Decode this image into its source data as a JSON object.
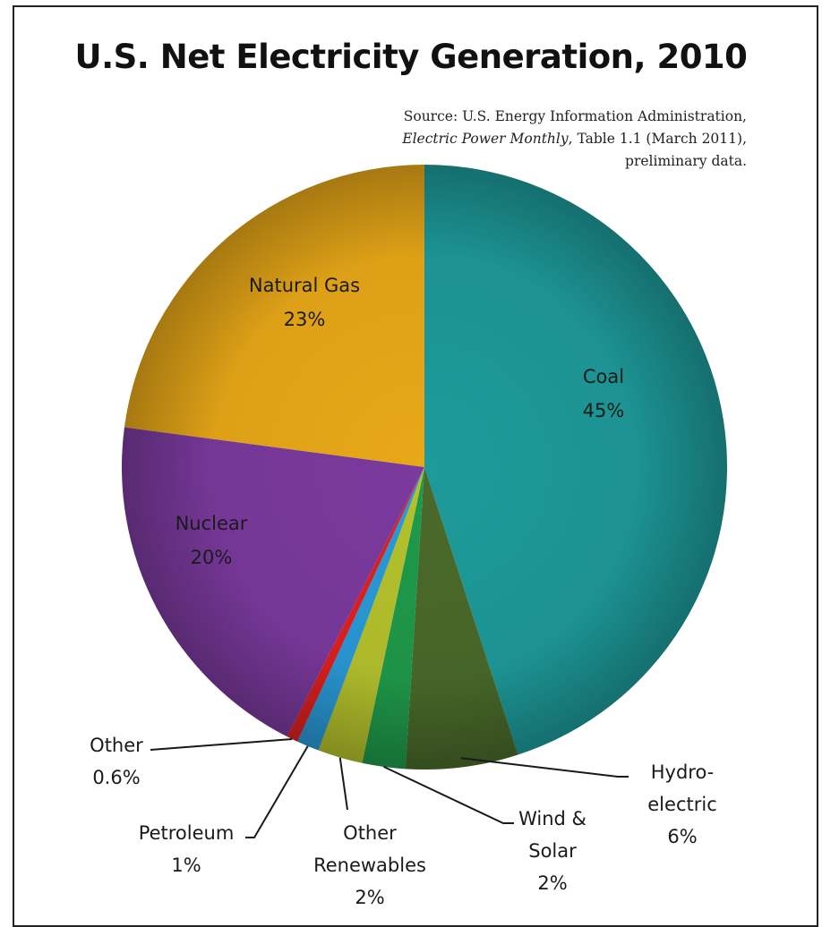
{
  "chart_data": {
    "type": "pie",
    "title": "U.S. Net Electricity Generation, 2010",
    "source": {
      "line1": "Source: U.S. Energy Information Administration,",
      "line2_italic": "Electric Power Monthly",
      "line2_rest": ", Table 1.1 (March 2011),",
      "line3": "preliminary data."
    },
    "slices": [
      {
        "name": "Coal",
        "value": 45,
        "label": [
          "Coal",
          "45%"
        ],
        "color": "#1e9a9a"
      },
      {
        "name": "Hydro-electric",
        "value": 6,
        "label": [
          "Hydro-",
          "electric",
          "6%"
        ],
        "color": "#4a6a2a"
      },
      {
        "name": "Wind & Solar",
        "value": 2.3,
        "label": [
          "Wind &",
          "Solar",
          "2%"
        ],
        "color": "#1f9a4a"
      },
      {
        "name": "Other Renewables",
        "value": 2.4,
        "label": [
          "Other",
          "Renewables",
          "2%"
        ],
        "color": "#b5c22c"
      },
      {
        "name": "Petroleum",
        "value": 1.2,
        "label": [
          "Petroleum",
          "1%"
        ],
        "color": "#2a9ad8"
      },
      {
        "name": "Other",
        "value": 0.6,
        "label": [
          "Other",
          "0.6%"
        ],
        "color": "#e02020"
      },
      {
        "name": "Nuclear",
        "value": 19.6,
        "label": [
          "Nuclear",
          "20%"
        ],
        "color": "#7b3a9e"
      },
      {
        "name": "Natural Gas",
        "value": 22.9,
        "label": [
          "Natural Gas",
          "23%"
        ],
        "color": "#e8a818"
      }
    ]
  }
}
